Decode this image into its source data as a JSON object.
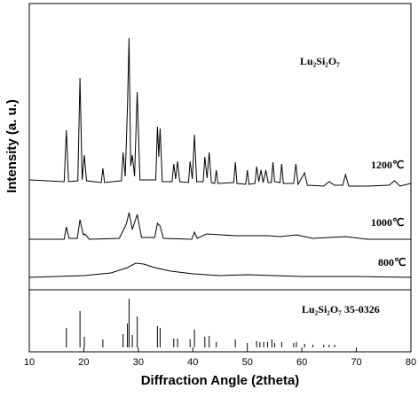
{
  "chart_data": [
    {
      "type": "line",
      "ylabel": "Intensity (a. u.)",
      "annotation": "Lu₂Si₂O₇",
      "xlim": [
        10,
        80
      ],
      "ylim": [
        0,
        323
      ],
      "series": [
        {
          "name": "1200℃",
          "color": "#000000",
          "x": [
            10,
            16.4,
            16.8,
            17.2,
            18.9,
            19.3,
            19.7,
            20.1,
            20.5,
            23.2,
            23.5,
            23.8,
            26.9,
            27.2,
            27.6,
            28.0,
            28.3,
            28.6,
            28.9,
            29.3,
            29.8,
            30.3,
            33.2,
            33.5,
            33.75,
            34.0,
            34.4,
            36.2,
            36.5,
            36.85,
            37.2,
            37.6,
            39.2,
            39.5,
            39.9,
            40.3,
            40.7,
            41.9,
            42.2,
            42.6,
            43.0,
            43.4,
            44.0,
            44.3,
            44.6,
            47.5,
            47.8,
            48.1,
            49.7,
            50.0,
            50.3,
            51.4,
            51.7,
            52.1,
            52.5,
            52.9,
            53.4,
            53.8,
            54.4,
            54.7,
            55.0,
            56.0,
            56.3,
            56.6,
            58.5,
            58.9,
            59.3,
            60.5,
            61,
            64,
            65,
            66,
            67.5,
            68,
            68.6,
            72,
            76,
            77,
            78,
            80
          ],
          "values": [
            124,
            122,
            180,
            122,
            123,
            239,
            124,
            152,
            123,
            121,
            137,
            121,
            123,
            155,
            128,
            205,
            284,
            140,
            152,
            128,
            223,
            124,
            124,
            184,
            150,
            182,
            122,
            122,
            142,
            125,
            145,
            122,
            121,
            145,
            125,
            175,
            122,
            122,
            150,
            126,
            155,
            121,
            120,
            135,
            120,
            121,
            144,
            120,
            119,
            135,
            119,
            120,
            139,
            122,
            135,
            121,
            135,
            121,
            121,
            144,
            122,
            121,
            142,
            120,
            120,
            142,
            119,
            132,
            118,
            117,
            122,
            118,
            118,
            130,
            117,
            117,
            118,
            123,
            117,
            120
          ]
        },
        {
          "name": "1000℃",
          "color": "#000000",
          "x": [
            10,
            16.4,
            16.8,
            17.3,
            18.8,
            19.3,
            19.9,
            20.2,
            21,
            26.5,
            27.8,
            28.3,
            28.9,
            29.8,
            30.6,
            33,
            33.5,
            34,
            34.6,
            39.8,
            40.3,
            40.8,
            42.5,
            47.8,
            52,
            54,
            56,
            59,
            62,
            68,
            72,
            80
          ],
          "values": [
            57,
            57,
            71,
            58,
            58,
            79,
            62,
            63,
            57,
            58,
            74,
            87,
            68,
            85,
            59,
            59,
            75,
            72,
            58,
            57,
            65,
            58,
            63,
            61,
            61,
            61,
            60,
            62,
            58,
            60,
            57,
            57
          ]
        },
        {
          "name": "800℃",
          "color": "#000000",
          "x": [
            10,
            20,
            25,
            28,
            29.5,
            31,
            33,
            36,
            40,
            45,
            50,
            55,
            60,
            70,
            80
          ],
          "values": [
            14,
            16,
            19,
            25,
            30,
            29,
            25,
            21,
            18,
            16,
            17,
            16,
            15,
            15,
            14
          ]
        }
      ]
    },
    {
      "type": "stick",
      "label": "Lu₂Si₂O₇ 35-0326",
      "xlabel": "Diffraction Angle (2theta)",
      "xlim": [
        10,
        80
      ],
      "ylim": [
        -5,
        65
      ],
      "xticks": [
        10,
        20,
        30,
        40,
        50,
        60,
        70,
        80
      ],
      "color": "#000000",
      "x": [
        16.8,
        19.3,
        20.1,
        23.5,
        27.2,
        28.0,
        28.3,
        28.9,
        29.8,
        33.5,
        34.0,
        36.5,
        37.2,
        39.5,
        40.3,
        42.2,
        43.0,
        44.3,
        47.8,
        50.0,
        51.7,
        52.3,
        53.0,
        53.7,
        54.5,
        55.0,
        56.3,
        58.5,
        59.0,
        60.5,
        62,
        64,
        65,
        66
      ],
      "values": [
        22,
        41,
        12,
        9,
        15,
        27,
        55,
        14,
        35,
        24,
        22,
        10,
        10,
        9,
        20,
        12,
        13,
        6,
        9,
        5,
        7,
        6,
        6,
        6,
        9,
        5,
        6,
        5,
        6,
        4,
        3,
        3,
        3,
        3
      ]
    }
  ]
}
